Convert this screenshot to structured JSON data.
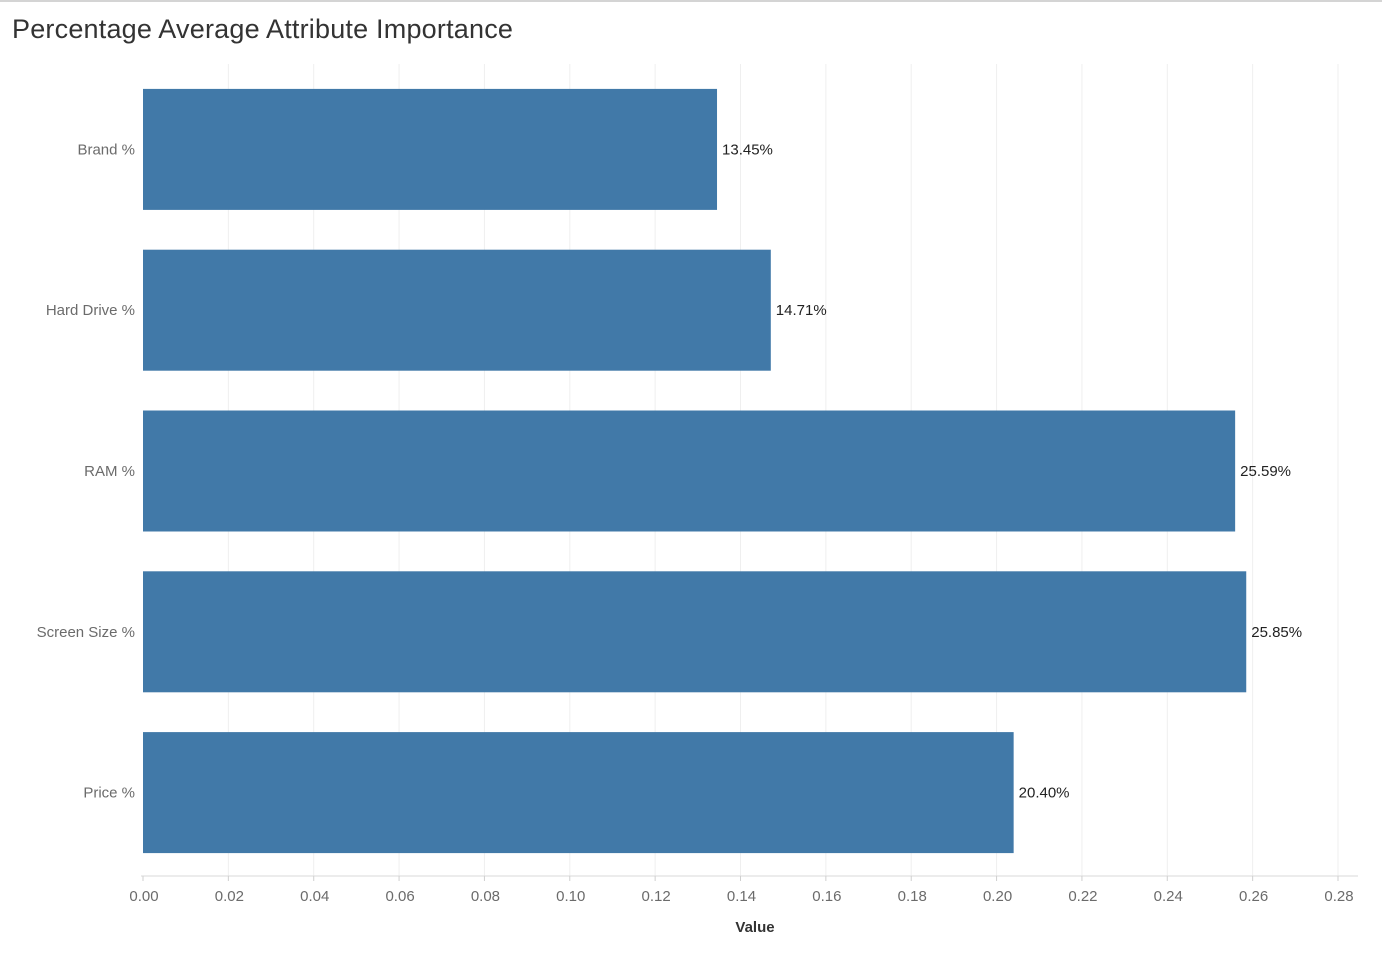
{
  "title": "Percentage Average Attribute Importance",
  "chart_data": {
    "type": "bar",
    "orientation": "horizontal",
    "title": "Percentage Average Attribute Importance",
    "categories": [
      "Brand %",
      "Hard Drive %",
      "RAM %",
      "Screen Size %",
      "Price %"
    ],
    "values": [
      0.1345,
      0.1471,
      0.2559,
      0.2585,
      0.204
    ],
    "data_labels": [
      "13.45%",
      "14.71%",
      "25.59%",
      "25.85%",
      "20.40%"
    ],
    "xlabel": "Value",
    "ylabel": "",
    "xlim": [
      0,
      0.28
    ],
    "xticks": [
      "0.00",
      "0.02",
      "0.04",
      "0.06",
      "0.08",
      "0.10",
      "0.12",
      "0.14",
      "0.16",
      "0.18",
      "0.20",
      "0.22",
      "0.24",
      "0.26",
      "0.28"
    ],
    "grid": true,
    "bar_color": "#4179a8"
  }
}
